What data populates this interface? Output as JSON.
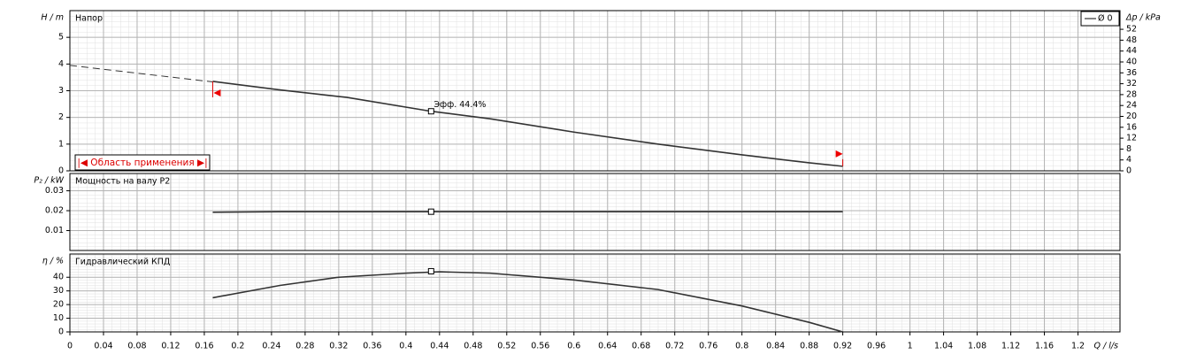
{
  "chart_data": [
    {
      "type": "line",
      "title": "Напор",
      "y_label": "H / m",
      "y2_label": "Δp / kPa",
      "xlim": [
        0,
        1.25
      ],
      "ylim": [
        0,
        6
      ],
      "yticks": [
        0,
        1,
        2,
        3,
        4,
        5
      ],
      "y2lim": [
        0,
        58.86
      ],
      "y2ticks": [
        0,
        4,
        8,
        12,
        16,
        20,
        24,
        28,
        32,
        36,
        40,
        44,
        48,
        52
      ],
      "series": [
        {
          "name": "Ø 0",
          "color": "#333333",
          "x": [
            0.17,
            0.25,
            0.33,
            0.43,
            0.5,
            0.6,
            0.7,
            0.8,
            0.88,
            0.92
          ],
          "values": [
            3.35,
            3.03,
            2.75,
            2.23,
            1.95,
            1.45,
            1.0,
            0.6,
            0.3,
            0.17
          ]
        }
      ],
      "dashed_series": {
        "x": [
          0,
          0.17
        ],
        "values": [
          3.95,
          3.33
        ]
      },
      "duty_point": {
        "x": 0.43,
        "value": 2.23
      },
      "annotation": "Эфф. 44.4%",
      "application_range": {
        "label": "|◀ Область применения ▶|",
        "x": [
          0.17,
          0.92
        ]
      },
      "grid": true
    },
    {
      "type": "line",
      "title": "Мощность на валу P2",
      "y_label": "P₂ / kW",
      "xlim": [
        0,
        1.25
      ],
      "ylim": [
        0,
        0.0387
      ],
      "yticks": [
        0.01,
        0.02,
        0.03
      ],
      "series": [
        {
          "name": "Ø 0",
          "color": "#333333",
          "x": [
            0.17,
            0.25,
            0.43,
            0.92
          ],
          "values": [
            0.0192,
            0.0195,
            0.0195,
            0.0195
          ]
        }
      ],
      "duty_point": {
        "x": 0.43,
        "value": 0.0195
      },
      "grid": true
    },
    {
      "type": "line",
      "title": "Гидравлический КПД",
      "y_label": "η / %",
      "x_label": "Q / l/s",
      "xlim": [
        0,
        1.25
      ],
      "ylim": [
        0,
        57
      ],
      "yticks": [
        0,
        10,
        20,
        30,
        40
      ],
      "xticks": [
        0,
        0.04,
        0.08,
        0.12,
        0.16,
        0.2,
        0.24,
        0.28,
        0.32,
        0.36,
        0.4,
        0.44,
        0.48,
        0.52,
        0.56,
        0.6,
        0.64,
        0.68,
        0.72,
        0.76,
        0.8,
        0.84,
        0.88,
        0.92,
        0.96,
        1,
        1.04,
        1.08,
        1.12,
        1.16,
        1.2
      ],
      "series": [
        {
          "name": "Ø 0",
          "color": "#333333",
          "x": [
            0.17,
            0.25,
            0.32,
            0.4,
            0.44,
            0.5,
            0.6,
            0.7,
            0.8,
            0.88,
            0.92
          ],
          "values": [
            25,
            34,
            40,
            43,
            44,
            43,
            38,
            31,
            19,
            7,
            0
          ]
        }
      ],
      "duty_point": {
        "x": 0.43,
        "value": 44.4
      },
      "grid": true
    }
  ]
}
